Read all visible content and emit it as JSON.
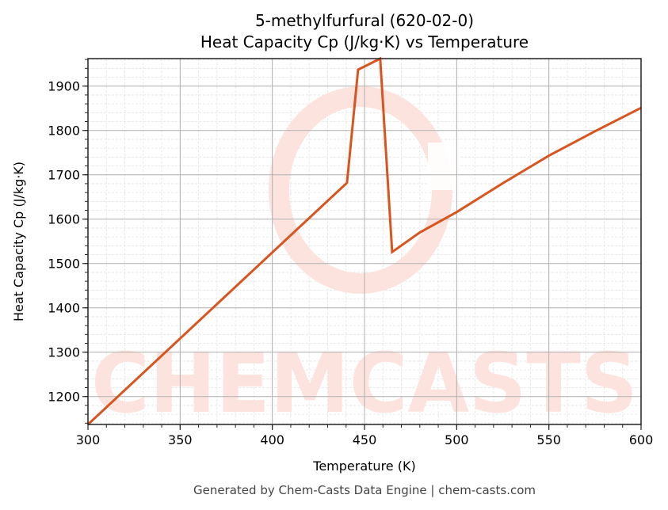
{
  "chart_data": {
    "type": "line",
    "title": "5-methylfurfural (620-02-0)",
    "subtitle": "Heat Capacity Cp (J/kg·K) vs Temperature",
    "xlabel": "Temperature (K)",
    "ylabel": "Heat Capacity Cp (J/kg·K)",
    "xlim": [
      300,
      600
    ],
    "ylim": [
      1137,
      1962
    ],
    "x_ticks": [
      300,
      350,
      400,
      450,
      500,
      550,
      600
    ],
    "y_ticks": [
      1200,
      1300,
      1400,
      1500,
      1600,
      1700,
      1800,
      1900
    ],
    "x_minor_step": 10,
    "y_minor_step": 20,
    "grid": true,
    "legend": null,
    "line_color": "#d9541e",
    "series": [
      {
        "name": "Cp",
        "x": [
          300,
          440.5,
          446.5,
          458.5,
          465,
          480,
          500,
          525,
          550,
          575,
          600
        ],
        "y": [
          1137,
          1682,
          1937,
          1962,
          1526,
          1570,
          1616,
          1681,
          1743,
          1798,
          1851
        ]
      }
    ],
    "watermark": "CHEMCASTS"
  },
  "footer": "Generated by Chem-Casts Data Engine | chem-casts.com"
}
